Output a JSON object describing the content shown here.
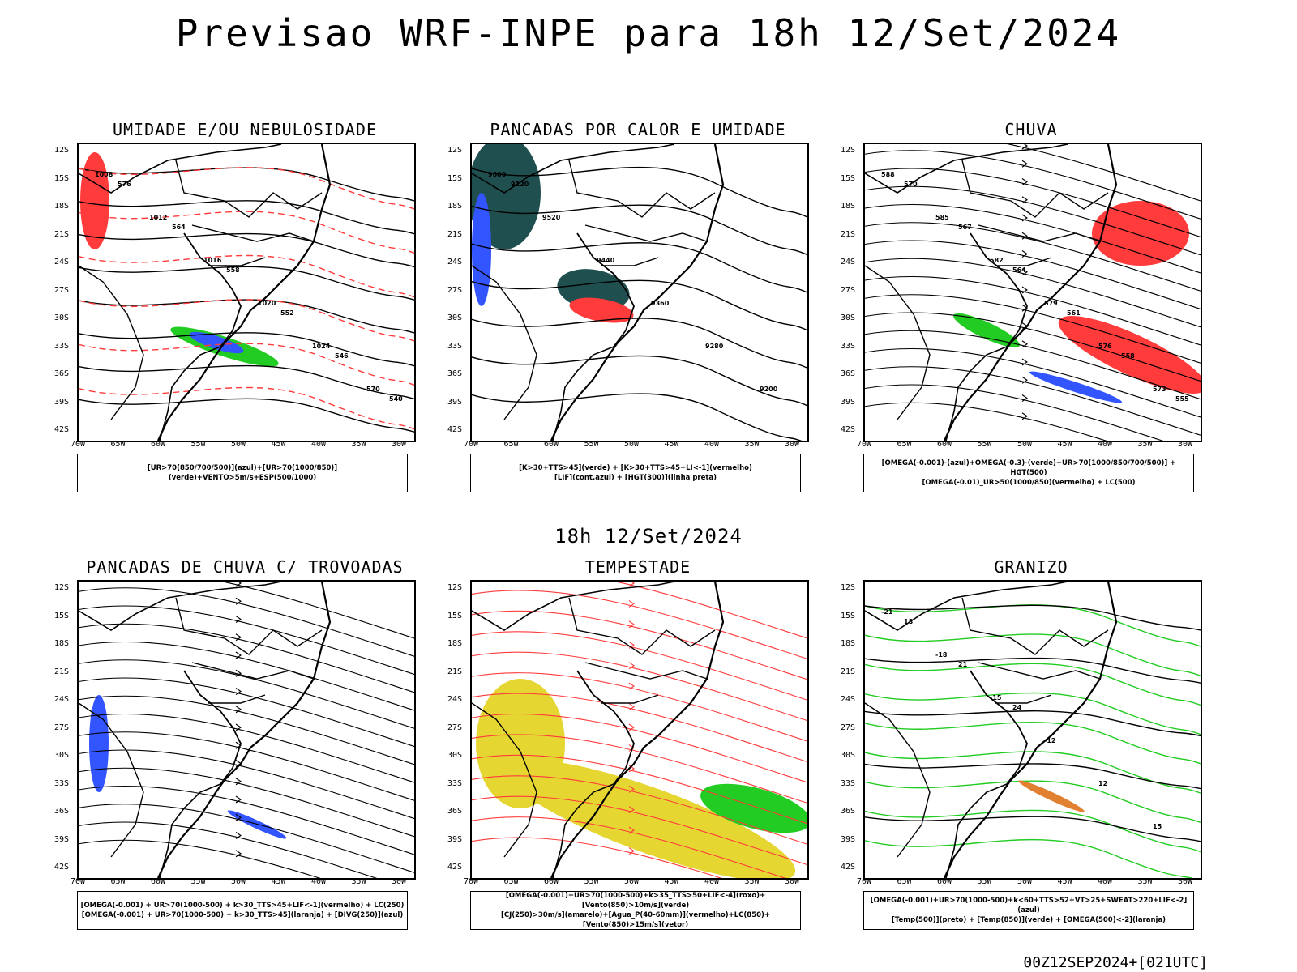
{
  "title": "Previsao WRF-INPE  para 18h 12/Set/2024",
  "mid_title": "18h 12/Set/2024",
  "stamp": "00Z12SEP2024+[021UTC]",
  "lat_labels": [
    "12S",
    "15S",
    "18S",
    "21S",
    "24S",
    "27S",
    "30S",
    "33S",
    "36S",
    "39S",
    "42S"
  ],
  "lon_labels": [
    "70W",
    "65W",
    "60W",
    "55W",
    "50W",
    "45W",
    "40W",
    "35W",
    "30W"
  ],
  "colors": {
    "red": "#ff3b3b",
    "green": "#22cc22",
    "blue": "#3355ff",
    "yellow": "#e6d632",
    "teal": "#1f4f4f",
    "orange": "#e08030"
  },
  "panels": [
    {
      "title": "UMIDADE E/OU NEBULOSIDADE",
      "legend": [
        "[UR>70(850/700/500)](azul)+[UR>70(1000/850)](verde)+VENTO>5m/s+ESP(500/1000)"
      ],
      "contour_labels": [
        "1008",
        "1012",
        "1016",
        "1020",
        "1024",
        "570",
        "576",
        "564",
        "558",
        "552",
        "546",
        "540"
      ]
    },
    {
      "title": "PANCADAS POR CALOR E UMIDADE",
      "legend": [
        "[K>30+TTS>45](verde) + [K>30+TTS>45+LI<-1](vermelho)",
        "[LIF](cont.azul) + [HGT(300)](linha preta)"
      ],
      "contour_labels": [
        "9600",
        "9520",
        "9440",
        "9360",
        "9280",
        "9200",
        "9120"
      ]
    },
    {
      "title": "CHUVA",
      "legend": [
        "[OMEGA(-0.001)-(azul)+OMEGA(-0.3)-(verde)+UR>70(1000/850/700/500)] + HGT(500)",
        "[OMEGA(-0.01)_UR>50(1000/850)(vermelho) + LC(500)"
      ],
      "contour_labels": [
        "588",
        "585",
        "582",
        "579",
        "576",
        "573",
        "570",
        "567",
        "564",
        "561",
        "558",
        "555"
      ]
    },
    {
      "title": "PANCADAS DE CHUVA C/ TROVOADAS",
      "legend": [
        "[OMEGA(-0.001) + UR>70(1000-500) + k>30_TTS>45+LIF<-1](vermelho) + LC(250)",
        "[OMEGA(-0.001) + UR>70(1000-500) + k>30_TTS>45](laranja) + [DIVG(250)](azul)"
      ],
      "contour_labels": []
    },
    {
      "title": "TEMPESTADE",
      "legend": [
        "[OMEGA(-0.001)+UR>70(1000-500)+k>35_TTS>50+LIF<-4](roxo)+[Vento(850)>10m/s](verde)",
        "[CJ(250)>30m/s](amarelo)+[Agua_P(40-60mm)](vermelho)+LC(850)+[Vento(850)>15m/s](vetor)"
      ],
      "contour_labels": []
    },
    {
      "title": "GRANIZO",
      "legend": [
        "[OMEGA(-0.001)+UR>70(1000-500)+k<60+TTS>52+VT>25+SWEAT>220+LIF<-2](azul)",
        "[Temp(500)](preto) + [Temp(850)](verde) + [OMEGA(500)<-2](laranja)"
      ],
      "contour_labels": [
        "-21",
        "-18",
        "-15",
        "-12",
        "12",
        "15",
        "18",
        "21",
        "24"
      ]
    }
  ]
}
